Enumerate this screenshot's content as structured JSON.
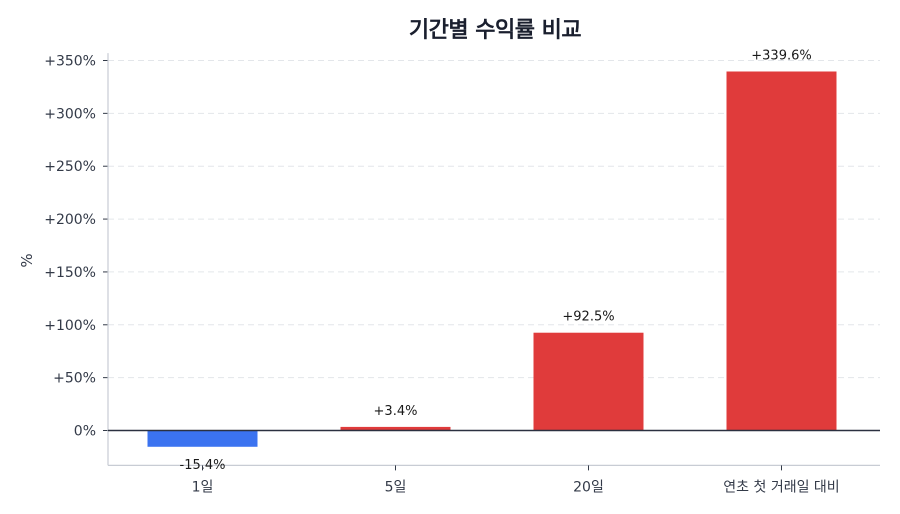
{
  "chart_data": {
    "type": "bar",
    "title": "기간별 수익률 비교",
    "xlabel": "",
    "ylabel": "%",
    "categories": [
      "1일",
      "5일",
      "20일",
      "연초 첫 거래일 대비"
    ],
    "values": [
      -15.4,
      3.4,
      92.5,
      339.6
    ],
    "value_labels": [
      "-15.4%",
      "+3.4%",
      "+92.5%",
      "+339.6%"
    ],
    "bar_colors": [
      "#3b73f0",
      "#e03b3b",
      "#e03b3b",
      "#e03b3b"
    ],
    "ylim": [
      -33,
      357
    ],
    "yticks": [
      0,
      50,
      100,
      150,
      200,
      250,
      300,
      350
    ],
    "ytick_labels": [
      "0%",
      "+50%",
      "+100%",
      "+150%",
      "+200%",
      "+250%",
      "+300%",
      "+350%"
    ],
    "grid": "horizontal dashed",
    "legend": null
  },
  "colors": {
    "positive": "#e03b3b",
    "negative": "#3b73f0",
    "zero_line": "#2b3140",
    "grid": "#e3e6ea",
    "axis": "#c8ccd4"
  }
}
